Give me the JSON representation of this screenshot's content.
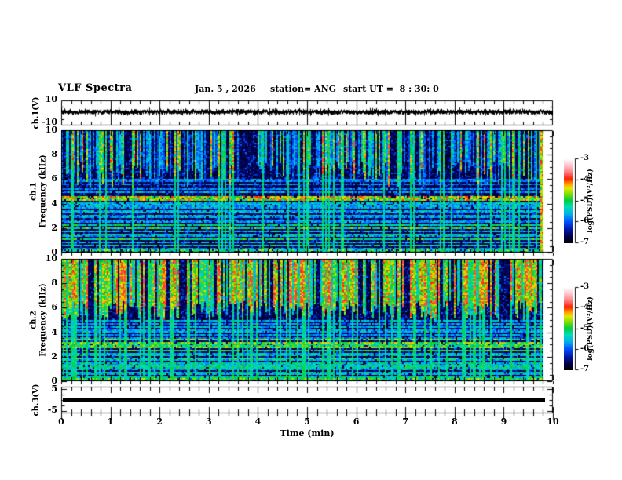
{
  "header": {
    "title": "VLF Spectra",
    "date": "Jan. 5 , 2026",
    "station": "station= ANG",
    "start_ut": "start UT =  8 : 30: 0"
  },
  "xaxis": {
    "label": "Time (min)",
    "range": [
      0,
      10
    ],
    "tick_labels": [
      "0",
      "1",
      "2",
      "3",
      "4",
      "5",
      "6",
      "7",
      "8",
      "9",
      "10"
    ],
    "minor_step_min": 0.2,
    "data_end_min": 9.8
  },
  "colorbar": {
    "unit_label": "log(PSD)(V²/Hz)",
    "tick_labels": [
      "-3",
      "-4",
      "-5",
      "-6",
      "-7"
    ],
    "range": [
      -7,
      -3
    ]
  },
  "palette": {
    "stops": [
      [
        0,
        "#000000"
      ],
      [
        0.07,
        "#000048"
      ],
      [
        0.16,
        "#0018a8"
      ],
      [
        0.25,
        "#0050ff"
      ],
      [
        0.34,
        "#00b0f0"
      ],
      [
        0.43,
        "#00e0b0"
      ],
      [
        0.5,
        "#00cc44"
      ],
      [
        0.58,
        "#7ce000"
      ],
      [
        0.65,
        "#e8e800"
      ],
      [
        0.7,
        "#ffa000"
      ],
      [
        0.76,
        "#ff2000"
      ],
      [
        0.85,
        "#ff8890"
      ],
      [
        0.93,
        "#ffccd4"
      ],
      [
        1,
        "#ffffff"
      ]
    ]
  },
  "chart_data": [
    {
      "id": "ch1_voltage",
      "type": "line",
      "ylabel": "ch.1(V)",
      "ylim": [
        -10,
        10
      ],
      "ytick_labels": [
        "10",
        "-10"
      ],
      "signal": {
        "kind": "broadband noise",
        "mean_v": 0.8,
        "peak_to_peak_v": 4
      }
    },
    {
      "id": "ch1_spectrogram",
      "type": "heatmap",
      "ylabel_lines": [
        "ch.1",
        "Frequency (kHz)"
      ],
      "ylim": [
        0,
        10
      ],
      "ytick_labels": [
        "10",
        "8",
        "6",
        "4",
        "2",
        "0"
      ],
      "value_range_log_psd": [
        -7,
        -3
      ],
      "features": {
        "seed": 20260105,
        "streak_density": 0.55,
        "streak_min": 0.26,
        "streak_span": 0.48,
        "hot_prob": 0.03,
        "hot_min": 0.7,
        "cutoff_khz": [
          5.3,
          7.5
        ],
        "speckle_prob": 0.18,
        "upper_boost": 0,
        "end_strip": true,
        "hlines": [
          [
            5.9,
            0.3
          ],
          [
            5.6,
            0.28
          ],
          [
            5.15,
            0.3
          ],
          [
            4.95,
            0.34
          ],
          [
            4.55,
            0.65,
            0.1
          ],
          [
            4.35,
            0.6,
            0.1
          ],
          [
            4.05,
            0.38
          ],
          [
            3.85,
            0.35
          ],
          [
            3.65,
            0.34
          ],
          [
            3.45,
            0.36
          ],
          [
            3.25,
            0.34
          ],
          [
            3.05,
            0.36
          ],
          [
            2.85,
            0.34
          ],
          [
            2.65,
            0.31
          ],
          [
            2.45,
            0.34
          ],
          [
            2.2,
            0.46
          ],
          [
            1.95,
            0.5
          ],
          [
            1.7,
            0.36
          ],
          [
            1.5,
            0.44
          ],
          [
            1.3,
            0.34
          ],
          [
            1.1,
            0.48
          ],
          [
            0.85,
            0.36
          ],
          [
            0.6,
            0.44
          ],
          [
            0.35,
            0.32
          ],
          [
            0.15,
            0.52
          ]
        ]
      }
    },
    {
      "id": "ch2_spectrogram",
      "type": "heatmap",
      "ylabel_lines": [
        "ch.2",
        "Frequency (kHz)"
      ],
      "ylim": [
        0,
        10
      ],
      "ytick_labels": [
        "10",
        "8",
        "6",
        "4",
        "2",
        "0"
      ],
      "value_range_log_psd": [
        -7,
        -3
      ],
      "features": {
        "seed": 87231,
        "streak_density": 0.68,
        "streak_min": 0.4,
        "streak_span": 0.42,
        "hot_prob": 0.1,
        "hot_min": 0.72,
        "cutoff_khz": [
          5.0,
          6.6
        ],
        "speckle_prob": 0.2,
        "upper_boost": 0.07,
        "end_strip": false,
        "hlines": [
          [
            4.9,
            0.36
          ],
          [
            4.65,
            0.32
          ],
          [
            4.45,
            0.35
          ],
          [
            4.2,
            0.32
          ],
          [
            4.0,
            0.35
          ],
          [
            3.8,
            0.32
          ],
          [
            3.55,
            0.3
          ],
          [
            3.35,
            0.52
          ],
          [
            3.15,
            0.56
          ],
          [
            2.95,
            0.5
          ],
          [
            2.75,
            0.56
          ],
          [
            2.55,
            0.48
          ],
          [
            2.3,
            0.36
          ],
          [
            2.1,
            0.42
          ],
          [
            1.9,
            0.46
          ],
          [
            1.7,
            0.36
          ],
          [
            1.5,
            0.42
          ],
          [
            1.3,
            0.36
          ],
          [
            1.15,
            0.44
          ],
          [
            0.95,
            0.36
          ],
          [
            0.75,
            0.42
          ],
          [
            0.55,
            0.36
          ],
          [
            0.35,
            0.44
          ],
          [
            0.15,
            0.52
          ]
        ]
      }
    },
    {
      "id": "ch3_voltage",
      "type": "line",
      "ylabel": "ch.3(V)",
      "ylim": [
        -5,
        5
      ],
      "ytick_labels": [
        "5",
        "-5"
      ],
      "signal": {
        "kind": "constant",
        "value_v": 0
      }
    }
  ]
}
